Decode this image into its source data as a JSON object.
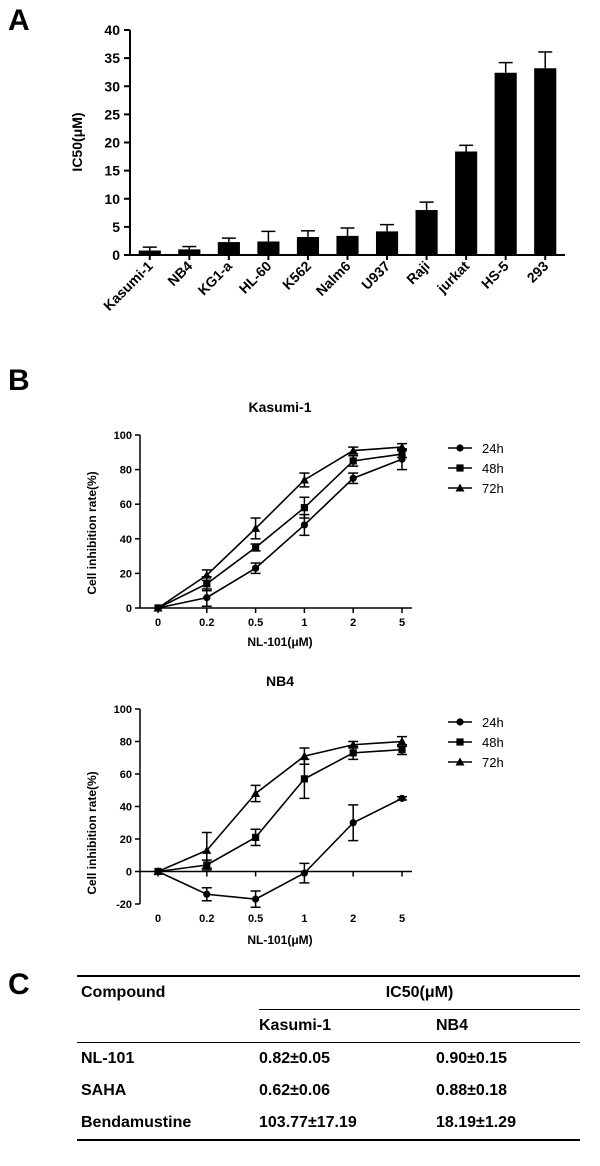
{
  "panels": {
    "a": "A",
    "b": "B",
    "c": "C"
  },
  "chart_data": [
    {
      "type": "bar",
      "title": "",
      "xlabel": "",
      "ylabel": "IC50(μM)",
      "ylim": [
        0,
        40
      ],
      "yticks": [
        0,
        5,
        10,
        15,
        20,
        25,
        30,
        35,
        40
      ],
      "categories": [
        "Kasumi-1",
        "NB4",
        "KG1-a",
        "HL-60",
        "K562",
        "Nalm6",
        "U937",
        "Raji",
        "jurkat",
        "HS-5",
        "293"
      ],
      "values": [
        0.8,
        1.0,
        2.3,
        2.4,
        3.2,
        3.4,
        4.2,
        8.0,
        18.4,
        32.4,
        33.2
      ],
      "errors": [
        0.6,
        0.5,
        0.7,
        1.8,
        1.1,
        1.4,
        1.2,
        1.4,
        1.1,
        1.8,
        2.9
      ],
      "grid": false,
      "color": "#000000"
    },
    {
      "type": "line",
      "title": "Kasumi-1",
      "xlabel": "NL-101(μM)",
      "ylabel": "Cell inhibition rate(%)",
      "x": [
        "0",
        "0.2",
        "0.5",
        "1",
        "2",
        "5"
      ],
      "ylim": [
        0,
        100
      ],
      "yticks": [
        0,
        20,
        40,
        60,
        80,
        100
      ],
      "legend_position": "right",
      "grid": false,
      "series": [
        {
          "name": "24h",
          "marker": "circle",
          "values": [
            0,
            6,
            23,
            48,
            75,
            86
          ],
          "errors": [
            0,
            5,
            3,
            6,
            3,
            6
          ]
        },
        {
          "name": "48h",
          "marker": "square",
          "values": [
            0,
            14,
            35,
            58,
            85,
            89
          ],
          "errors": [
            0,
            4,
            2,
            6,
            3,
            2
          ]
        },
        {
          "name": "72h",
          "marker": "triangle",
          "values": [
            0,
            19,
            46,
            74,
            91,
            93
          ],
          "errors": [
            0,
            3,
            6,
            4,
            2,
            2
          ]
        }
      ]
    },
    {
      "type": "line",
      "title": "NB4",
      "xlabel": "NL-101(μM)",
      "ylabel": "Cell inhibition rate(%)",
      "x": [
        "0",
        "0.2",
        "0.5",
        "1",
        "2",
        "5"
      ],
      "ylim": [
        -20,
        100
      ],
      "yticks": [
        -20,
        0,
        20,
        40,
        60,
        80,
        100
      ],
      "legend_position": "right",
      "grid": false,
      "series": [
        {
          "name": "24h",
          "marker": "circle",
          "values": [
            0,
            -14,
            -17,
            -1,
            30,
            45
          ],
          "errors": [
            0,
            4,
            5,
            6,
            11,
            1
          ]
        },
        {
          "name": "48h",
          "marker": "square",
          "values": [
            0,
            4,
            21,
            57,
            73,
            75
          ],
          "errors": [
            0,
            3,
            5,
            12,
            4,
            3
          ]
        },
        {
          "name": "72h",
          "marker": "triangle",
          "values": [
            0,
            13,
            48,
            71,
            78,
            80
          ],
          "errors": [
            0,
            11,
            5,
            5,
            2,
            3
          ]
        }
      ]
    }
  ],
  "table": {
    "header": {
      "compound": "Compound",
      "group": "IC50(μM)",
      "col1": "Kasumi-1",
      "col2": "NB4"
    },
    "rows": [
      {
        "compound": "NL-101",
        "v1": "0.82±0.05",
        "v2": "0.90±0.15"
      },
      {
        "compound": "SAHA",
        "v1": "0.62±0.06",
        "v2": "0.88±0.18"
      },
      {
        "compound": "Bendamustine",
        "v1": "103.77±17.19",
        "v2": "18.19±1.29"
      }
    ]
  }
}
